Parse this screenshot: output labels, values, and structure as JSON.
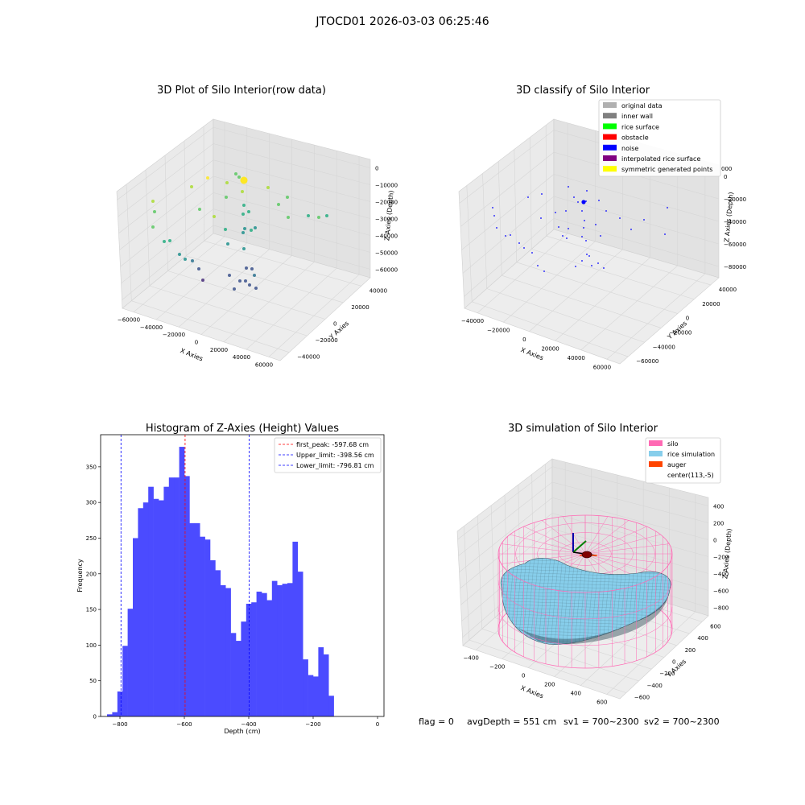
{
  "figure": {
    "suptitle": "JTOCD01 2026-03-03 06:25:46",
    "footer": {
      "flag": "flag = 0",
      "avg_depth": "avgDepth = 551 cm",
      "sv1": "sv1 = 700~2300",
      "sv2": "sv2 = 700~2300"
    }
  },
  "chart_data": [
    {
      "type": "scatter",
      "projection": "3d",
      "title": "3D Plot of Silo Interior(row data)",
      "xlabel": "X Axies",
      "ylabel": "Y Axies",
      "zlabel": "Z Axies (Depth)",
      "x_ticks": [
        "−60000",
        "−40000",
        "−20000",
        "0",
        "20000",
        "40000",
        "60000"
      ],
      "y_ticks": [
        "−40000",
        "−20000",
        "0",
        "20000",
        "40000"
      ],
      "z_ticks": [
        "0",
        "−10000",
        "−20000",
        "−30000",
        "−40000",
        "−50000",
        "−60000"
      ],
      "color_map": "viridis",
      "point_count": 45
    },
    {
      "type": "scatter",
      "projection": "3d",
      "title": "3D classify of Silo Interior",
      "xlabel": "X Axies",
      "ylabel": "Y Axies",
      "zlabel": "Z Axies (Depth)",
      "x_ticks": [
        "−40000",
        "−20000",
        "0",
        "20000",
        "40000",
        "60000"
      ],
      "y_ticks": [
        "−60000",
        "−40000",
        "−20000",
        "0",
        "20000",
        "40000"
      ],
      "z_ticks": [
        "0",
        "−20000",
        "−40000",
        "−60000",
        "−80000"
      ],
      "z_top_tick_partial": "000",
      "legend": [
        {
          "label": "original data",
          "color": "#b0b0b0"
        },
        {
          "label": "inner wall",
          "color": "#808080"
        },
        {
          "label": "rice surface",
          "color": "#00ff00"
        },
        {
          "label": "obstacle",
          "color": "#ff0000"
        },
        {
          "label": "noise",
          "color": "#0000ff"
        },
        {
          "label": "interpolated rice surface",
          "color": "#800080"
        },
        {
          "label": "symmetric generated points",
          "color": "#ffff00"
        }
      ],
      "point_count": 45
    },
    {
      "type": "bar",
      "subtype": "histogram",
      "title": "Histogram of Z-Axies (Height) Values",
      "xlabel": "Depth (cm)",
      "ylabel": "Frequency",
      "bar_color": "#4b4bff",
      "bin_start": -840,
      "bin_width": 16,
      "values": [
        3,
        6,
        35,
        99,
        151,
        250,
        292,
        300,
        322,
        305,
        303,
        322,
        335,
        335,
        378,
        337,
        271,
        271,
        252,
        248,
        219,
        205,
        184,
        180,
        117,
        106,
        133,
        158,
        160,
        175,
        173,
        163,
        190,
        184,
        186,
        187,
        245,
        203,
        80,
        58,
        56,
        97,
        87,
        29
      ],
      "xlim": [
        -860,
        20
      ],
      "ylim": [
        0,
        395
      ],
      "x_ticks": [
        -800,
        -600,
        -400,
        -200,
        0
      ],
      "x_tick_labels": [
        "−800",
        "−600",
        "−400",
        "−200",
        "0"
      ],
      "y_ticks": [
        0,
        50,
        100,
        150,
        200,
        250,
        300,
        350
      ],
      "vlines": [
        {
          "x": -597.68,
          "color": "#ff0000",
          "label": "first_peak: -597.68 cm"
        },
        {
          "x": -398.56,
          "color": "#0000ff",
          "label": "Upper_limit: -398.56 cm"
        },
        {
          "x": -796.81,
          "color": "#0000ff",
          "label": "Lower_limit: -796.81 cm"
        }
      ],
      "legend_position": "top-right"
    },
    {
      "type": "surface",
      "projection": "3d",
      "title": "3D simulation of Silo Interior",
      "xlabel": "X Axies",
      "ylabel": "Y Axies",
      "zlabel": "Z Axies (Depth)",
      "x_ticks": [
        "−400",
        "−200",
        "0",
        "200",
        "400",
        "600"
      ],
      "y_ticks": [
        "−600",
        "−400",
        "−200",
        "0",
        "200",
        "400",
        "600"
      ],
      "z_ticks": [
        "400",
        "200",
        "0",
        "−200",
        "−400",
        "−600",
        "−800"
      ],
      "legend": [
        {
          "label": "silo",
          "color": "#ff69b4"
        },
        {
          "label": "rice simulation",
          "color": "#87ceeb"
        },
        {
          "label": "auger",
          "color": "#ff4500"
        },
        {
          "label": "center(113,-5)",
          "color": "#ffffff"
        }
      ],
      "colors": {
        "silo": "#ff69b4",
        "rice": "#87ceeb",
        "auger": "#ff4500"
      }
    }
  ]
}
